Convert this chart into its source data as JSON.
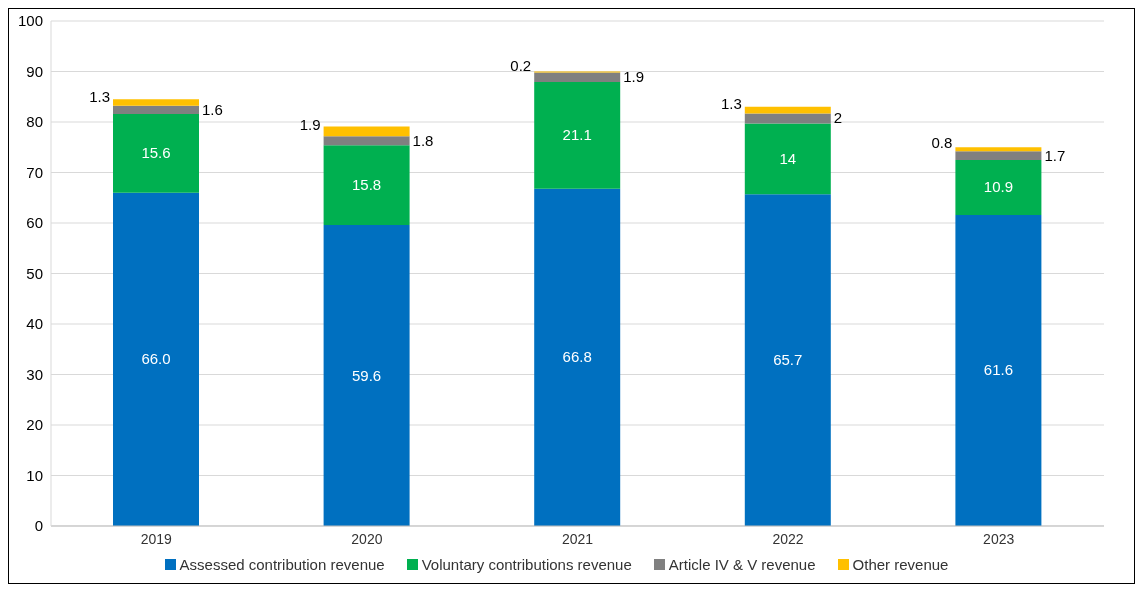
{
  "chart_data": {
    "type": "bar",
    "stacked": true,
    "categories": [
      "2019",
      "2020",
      "2021",
      "2022",
      "2023"
    ],
    "series": [
      {
        "name": "Assessed contribution revenue",
        "color": "#0070c0",
        "values": [
          66.0,
          59.6,
          66.8,
          65.7,
          61.6
        ],
        "value_labels": [
          "66.0",
          "59.6",
          "66.8",
          "65.7",
          "61.6"
        ]
      },
      {
        "name": "Voluntary contributions revenue",
        "color": "#00b050",
        "values": [
          15.6,
          15.8,
          21.1,
          14,
          10.9
        ],
        "value_labels": [
          "15.6",
          "15.8",
          "21.1",
          "14",
          "10.9"
        ]
      },
      {
        "name": "Article IV & V revenue",
        "color": "#808080",
        "values": [
          1.6,
          1.8,
          1.9,
          2,
          1.7
        ],
        "value_labels": [
          "1.6",
          "1.8",
          "1.9",
          "2",
          "1.7"
        ]
      },
      {
        "name": "Other revenue",
        "color": "#ffc000",
        "values": [
          1.3,
          1.9,
          0.2,
          1.3,
          0.8
        ],
        "value_labels": [
          "1.3",
          "1.9",
          "0.2",
          "1.3",
          "0.8"
        ]
      }
    ],
    "ylim": [
      0,
      100
    ],
    "yticks": [
      0,
      10,
      20,
      30,
      40,
      50,
      60,
      70,
      80,
      90,
      100
    ],
    "grid": "y",
    "legend": "bottom"
  }
}
